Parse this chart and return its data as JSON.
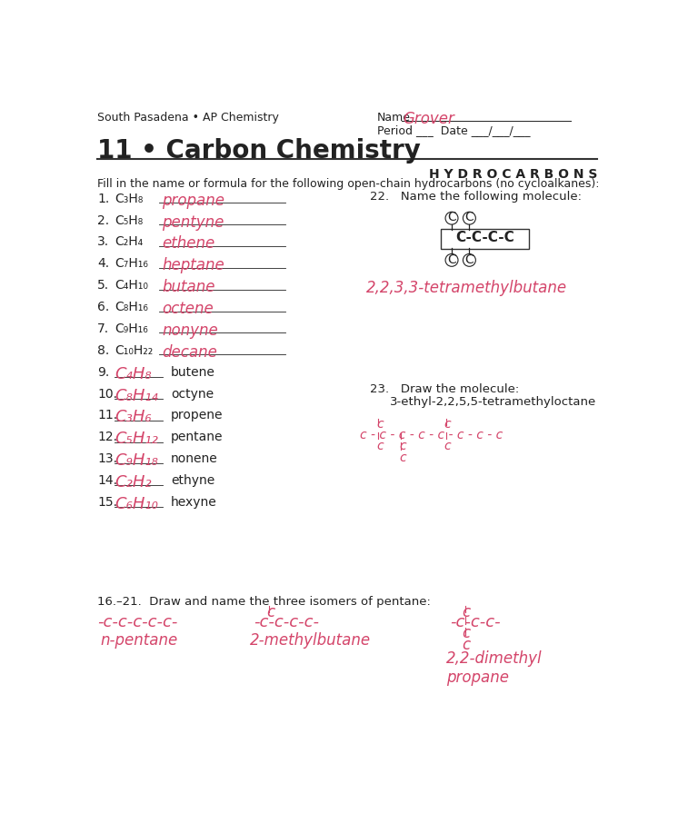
{
  "bg_color": "#ffffff",
  "header_left": "South Pasadena • AP Chemistry",
  "header_name_value": "Grover",
  "title": "11 • Carbon Chemistry",
  "subtitle": "H Y D R O C A R B O N S",
  "instruction": "Fill in the name or formula for the following open-chain hydrocarbons (no cycloalkanes):",
  "items18": [
    [
      "1.",
      "C₃H₈",
      "propane"
    ],
    [
      "2.",
      "C₅H₈",
      "pentyne"
    ],
    [
      "3.",
      "C₂H₄",
      "ethene"
    ],
    [
      "4.",
      "C₇H₁₆",
      "heptane"
    ],
    [
      "5.",
      "C₄H₁₀",
      "butane"
    ],
    [
      "6.",
      "C₈H₁₆",
      "octene"
    ],
    [
      "7.",
      "C₉H₁₆",
      "nonyne"
    ],
    [
      "8.",
      "C₁₀H₂₂",
      "decane"
    ]
  ],
  "items915": [
    [
      "9.",
      "C₄H₈",
      "butene"
    ],
    [
      "10.",
      "C₈H₁₄",
      "octyne"
    ],
    [
      "11.",
      "C₃H₆",
      "propene"
    ],
    [
      "12.",
      "C₅H₁₂",
      "pentane"
    ],
    [
      "13.",
      "C₉H₁₈",
      "nonene"
    ],
    [
      "14.",
      "C₂H₂",
      "ethyne"
    ],
    [
      "15.",
      "C₆H₁₀",
      "hexyne"
    ]
  ],
  "q22_text": "Name the following molecule:",
  "q22_answer": "2,2,3,3-tetramethylbutane",
  "q23_text": "Draw the molecule:",
  "q23_subtext": "3-ethyl-2,2,5,5-tetramethyloctane",
  "section_bottom_text": "Draw and name the three isomers of pentane:",
  "isomer1_name": "n-pentane",
  "isomer2_name": "2-methylbutane",
  "isomer3_name": "2,2-dimethyl\npropane",
  "pink": "#d4456a",
  "black": "#222222"
}
